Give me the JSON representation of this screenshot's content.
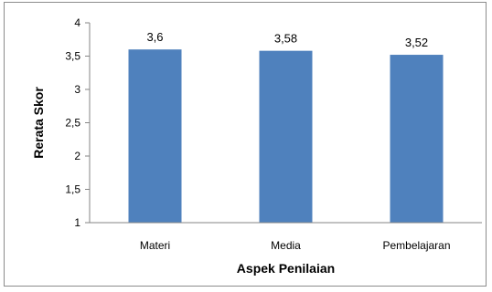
{
  "chart_data": {
    "type": "bar",
    "categories": [
      "Materi",
      "Media",
      "Pembelajaran"
    ],
    "values": [
      3.6,
      3.58,
      3.52
    ],
    "data_labels": [
      "3,6",
      "3,58",
      "3,52"
    ],
    "title": "",
    "xlabel": "Aspek Penilaian",
    "ylabel": "Rerata Skor",
    "ylim": [
      1,
      4
    ],
    "yticks": [
      1,
      1.5,
      2,
      2.5,
      3,
      3.5,
      4
    ],
    "ytick_labels": [
      "1",
      "1,5",
      "2",
      "2,5",
      "3",
      "3,5",
      "4"
    ],
    "bar_color": "#4F81BD",
    "grid": false,
    "legend": "none"
  }
}
